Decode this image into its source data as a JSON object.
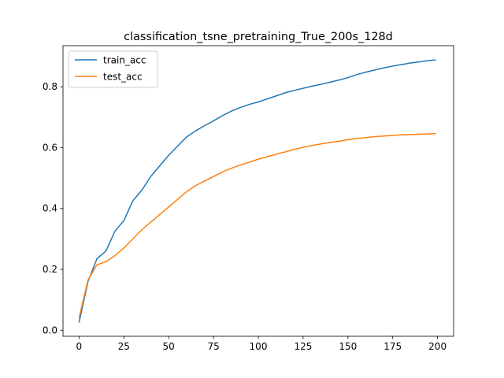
{
  "chart_data": {
    "type": "line",
    "title": "classification_tsne_pretraining_True_200s_128d",
    "xlabel": "",
    "ylabel": "",
    "xlim": [
      -8.95,
      208.95
    ],
    "ylim": [
      -0.02,
      0.935
    ],
    "x_ticks": [
      0,
      25,
      50,
      75,
      100,
      125,
      150,
      175,
      200
    ],
    "x_tick_labels": [
      "0",
      "25",
      "50",
      "75",
      "100",
      "125",
      "150",
      "175",
      "200"
    ],
    "y_ticks": [
      0.0,
      0.2,
      0.4,
      0.6,
      0.8
    ],
    "y_tick_labels": [
      "0.0",
      "0.2",
      "0.4",
      "0.6",
      "0.8"
    ],
    "grid": false,
    "legend": {
      "position": "top-left",
      "entries": [
        "train_acc",
        "test_acc"
      ]
    },
    "x": [
      0,
      5,
      10,
      15,
      20,
      25,
      30,
      35,
      40,
      45,
      50,
      55,
      60,
      65,
      70,
      75,
      80,
      85,
      90,
      95,
      100,
      105,
      110,
      115,
      120,
      125,
      130,
      135,
      140,
      145,
      150,
      155,
      160,
      165,
      170,
      175,
      180,
      185,
      190,
      195,
      199
    ],
    "series": [
      {
        "name": "train_acc",
        "color": "#1f77b4",
        "values": [
          0.025,
          0.16,
          0.235,
          0.26,
          0.325,
          0.36,
          0.425,
          0.46,
          0.505,
          0.54,
          0.575,
          0.605,
          0.635,
          0.655,
          0.672,
          0.688,
          0.705,
          0.72,
          0.732,
          0.742,
          0.75,
          0.76,
          0.77,
          0.78,
          0.788,
          0.795,
          0.802,
          0.808,
          0.815,
          0.822,
          0.83,
          0.84,
          0.848,
          0.855,
          0.862,
          0.868,
          0.873,
          0.878,
          0.882,
          0.886,
          0.888
        ]
      },
      {
        "name": "test_acc",
        "color": "#ff7f0e",
        "values": [
          0.04,
          0.165,
          0.215,
          0.225,
          0.245,
          0.27,
          0.3,
          0.33,
          0.355,
          0.38,
          0.405,
          0.43,
          0.455,
          0.475,
          0.49,
          0.505,
          0.52,
          0.532,
          0.543,
          0.552,
          0.562,
          0.57,
          0.578,
          0.586,
          0.594,
          0.601,
          0.607,
          0.612,
          0.617,
          0.621,
          0.626,
          0.63,
          0.633,
          0.636,
          0.638,
          0.64,
          0.642,
          0.643,
          0.644,
          0.645,
          0.646
        ]
      }
    ]
  }
}
